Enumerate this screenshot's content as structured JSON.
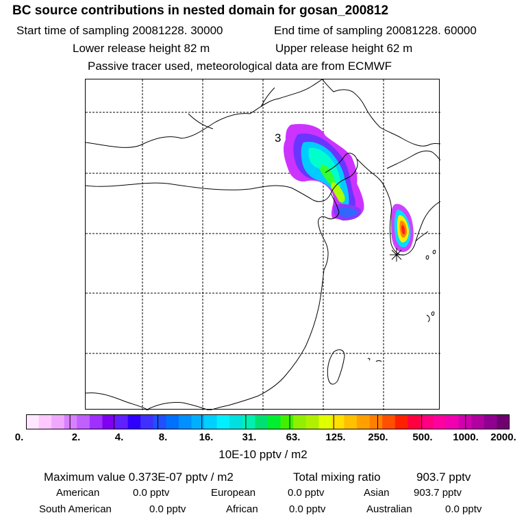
{
  "header": {
    "title": "BC  source contributions in nested domain for gosan_200812",
    "start_label": "Start time of sampling 20081228. 30000",
    "end_label": "End time of sampling 20081228. 60000",
    "lower_label": "Lower release height   82 m",
    "upper_label": "Upper release height   62 m",
    "tracer_note": "Passive tracer used, meteorological data are from ECMWF"
  },
  "map": {
    "marker_label": "3"
  },
  "colorbar": {
    "ticks": [
      "0.",
      "2.",
      "4.",
      "8.",
      "16.",
      "31.",
      "63.",
      "125.",
      "250.",
      "500.",
      "1000.",
      "2000."
    ],
    "colors": [
      "#ffe8ff",
      "#ffc8ff",
      "#f0a8ff",
      "#d880ff",
      "#c060ff",
      "#a030ff",
      "#8000f0",
      "#6020ff",
      "#3000ff",
      "#4030ff",
      "#2050ff",
      "#0070ff",
      "#0090ff",
      "#00b0ff",
      "#00d0ff",
      "#00f0ff",
      "#00e0e0",
      "#00f0b0",
      "#00e070",
      "#00f030",
      "#40f000",
      "#90f000",
      "#b0f000",
      "#e0ff00",
      "#ffe000",
      "#ffc000",
      "#ffa000",
      "#ff8000",
      "#ff5000",
      "#ff2000",
      "#ff0040",
      "#ff0080",
      "#ff00a0",
      "#f000b0",
      "#d000b0",
      "#b000a0",
      "#900090",
      "#700070"
    ],
    "units": "10E-10 pptv / m2"
  },
  "summary": {
    "max_label": "Maximum value  0.373E-07 pptv / m2",
    "total_label": "Total mixing ratio",
    "total_value": "903.7 pptv",
    "regions": [
      {
        "name": "American",
        "value": "0.0 pptv"
      },
      {
        "name": "European",
        "value": "0.0 pptv"
      },
      {
        "name": "Asian",
        "value": "903.7 pptv"
      },
      {
        "name": "South American",
        "value": "0.0 pptv"
      },
      {
        "name": "African",
        "value": "0.0 pptv"
      },
      {
        "name": "Australian",
        "value": "0.0 pptv"
      }
    ]
  }
}
